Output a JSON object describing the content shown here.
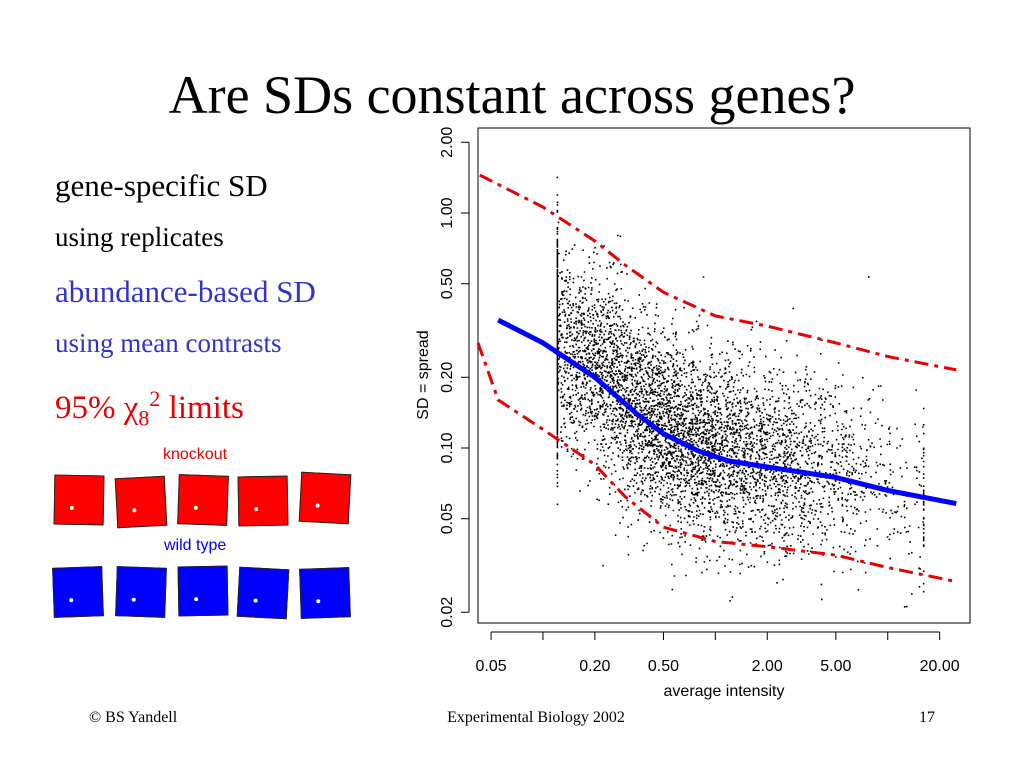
{
  "slide": {
    "title": "Are SDs constant across genes?",
    "bullets": [
      "gene-specific SD",
      "using replicates",
      "abundance-based SD",
      "using mean contrasts"
    ],
    "limits_prefix": "95% ",
    "limits_chi": "χ",
    "limits_sub": "8",
    "limits_sup": "2",
    "limits_suffix": " limits",
    "knockout_label": "knockout",
    "wildtype_label": "wild type",
    "colors": {
      "red": "#ff0000",
      "blue": "#0000ff",
      "blue_text": "#3333cc",
      "red_text": "#e60000"
    }
  },
  "footer": {
    "left": "© BS Yandell",
    "center": "Experimental Biology 2002",
    "right": "17"
  },
  "chart_data": {
    "type": "scatter",
    "xlabel": "average intensity",
    "ylabel": "SD = spread",
    "x_scale": "log",
    "y_scale": "log",
    "xlim": [
      0.042,
      30
    ],
    "ylim": [
      0.018,
      2.3
    ],
    "x_ticks": [
      0.05,
      0.1,
      0.2,
      0.5,
      1,
      2,
      5,
      10,
      20
    ],
    "x_tick_labels": [
      "0.05",
      "0.20",
      "0.50",
      "2.00",
      "5.00",
      "20.00"
    ],
    "x_tick_label_values": [
      0.05,
      0.2,
      0.5,
      2,
      5,
      20
    ],
    "y_ticks": [
      0.02,
      0.05,
      0.1,
      0.2,
      0.5,
      1,
      2
    ],
    "y_tick_labels": [
      "0.02",
      "0.05",
      "0.10",
      "0.20",
      "0.50",
      "1.00",
      "2.00"
    ],
    "scatter_points_approx": 6000,
    "series": [
      {
        "style": "solid",
        "color": "#0000ff",
        "x": [
          0.055,
          0.1,
          0.2,
          0.35,
          0.5,
          0.8,
          1.2,
          2,
          5,
          10,
          25
        ],
        "y": [
          0.35,
          0.28,
          0.2,
          0.14,
          0.115,
          0.097,
          0.088,
          0.083,
          0.075,
          0.066,
          0.058
        ]
      },
      {
        "style": "dashdot",
        "color": "#e60000",
        "x": [
          0.043,
          0.1,
          0.2,
          0.3,
          0.5,
          1,
          2,
          5,
          10,
          25
        ],
        "y": [
          1.45,
          1.06,
          0.76,
          0.6,
          0.46,
          0.365,
          0.33,
          0.28,
          0.245,
          0.215
        ]
      },
      {
        "style": "dashdot",
        "color": "#e60000",
        "x": [
          0.042,
          0.055,
          0.1,
          0.2,
          0.3,
          0.5,
          1,
          2,
          5,
          10,
          25
        ],
        "y": [
          0.28,
          0.16,
          0.12,
          0.085,
          0.062,
          0.046,
          0.04,
          0.038,
          0.035,
          0.031,
          0.027
        ]
      }
    ]
  }
}
